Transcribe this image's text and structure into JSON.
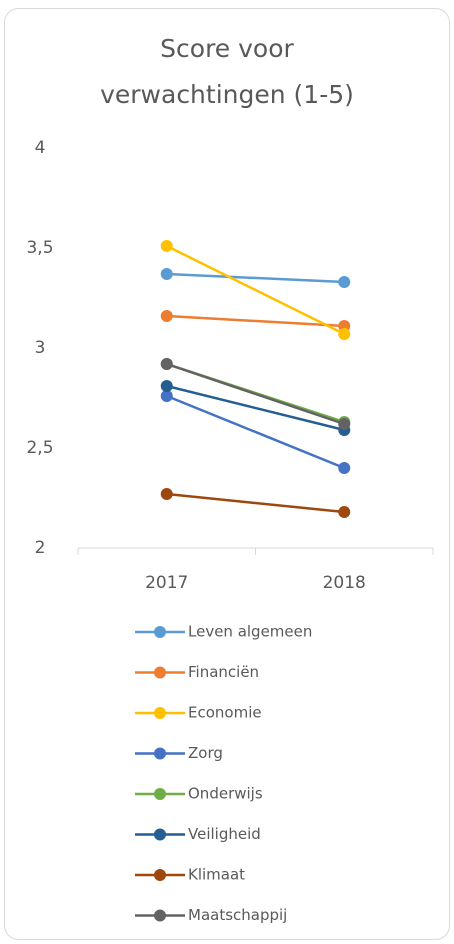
{
  "chart_data": {
    "type": "line",
    "title": "Score voor verwachtingen (1-5)",
    "categories": [
      "2017",
      "2018"
    ],
    "series": [
      {
        "name": "Leven algemeen",
        "color": "#5b9bd5",
        "values": [
          3.37,
          3.33
        ]
      },
      {
        "name": "Financiën",
        "color": "#ed7d31",
        "values": [
          3.16,
          3.11
        ]
      },
      {
        "name": "Economie",
        "color": "#ffc000",
        "values": [
          3.51,
          3.07
        ]
      },
      {
        "name": "Zorg",
        "color": "#4472c4",
        "values": [
          2.76,
          2.4
        ]
      },
      {
        "name": "Onderwijs",
        "color": "#70ad47",
        "values": [
          2.92,
          2.63
        ]
      },
      {
        "name": "Veiligheid",
        "color": "#255e91",
        "values": [
          2.81,
          2.59
        ]
      },
      {
        "name": "Klimaat",
        "color": "#9e480e",
        "values": [
          2.27,
          2.18
        ]
      },
      {
        "name": "Maatschappij",
        "color": "#636363",
        "values": [
          2.92,
          2.62
        ]
      }
    ],
    "ylim": [
      2,
      4
    ],
    "yticks": [
      2,
      {
        "value": 2.5,
        "label": "2,5"
      },
      3,
      {
        "value": 3.5,
        "label": "3,5"
      },
      4
    ],
    "grid": false,
    "legend": "bottom"
  }
}
